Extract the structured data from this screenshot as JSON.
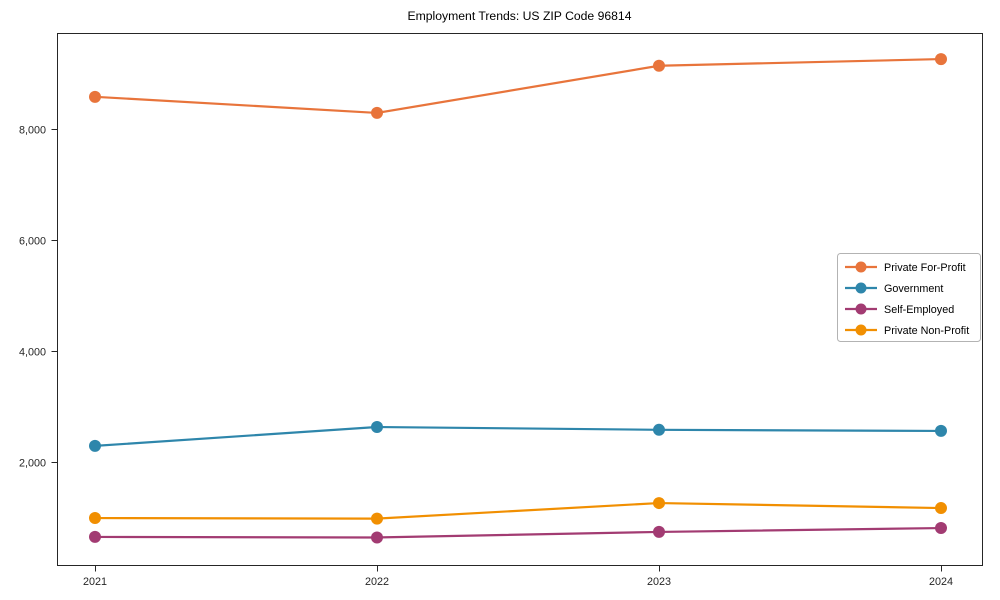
{
  "chart_data": {
    "type": "line",
    "title": "Employment Trends: US ZIP Code 96814",
    "xlabel": "",
    "ylabel": "",
    "x_labels": [
      "2021",
      "2022",
      "2023",
      "2024"
    ],
    "yticks": [
      2000,
      4000,
      6000,
      8000
    ],
    "ytick_labels": [
      "2,000",
      "4,000",
      "6,000",
      "8,000"
    ],
    "ylim": [
      144,
      9730
    ],
    "grid": false,
    "legend_position": "center-right",
    "series": [
      {
        "name": "Private For-Profit",
        "color": "#E8743B",
        "values": [
          8580,
          8290,
          9140,
          9260
        ]
      },
      {
        "name": "Government",
        "color": "#2E86AB",
        "values": [
          2290,
          2630,
          2580,
          2560
        ]
      },
      {
        "name": "Self-Employed",
        "color": "#A23B72",
        "values": [
          650,
          640,
          740,
          810
        ]
      },
      {
        "name": "Private Non-Profit",
        "color": "#F18F01",
        "values": [
          990,
          980,
          1260,
          1170
        ]
      }
    ],
    "colors": {
      "axis": "#262626",
      "tick_label": "#262626",
      "legend_border": "#b3b3b3",
      "background": "#ffffff"
    }
  }
}
